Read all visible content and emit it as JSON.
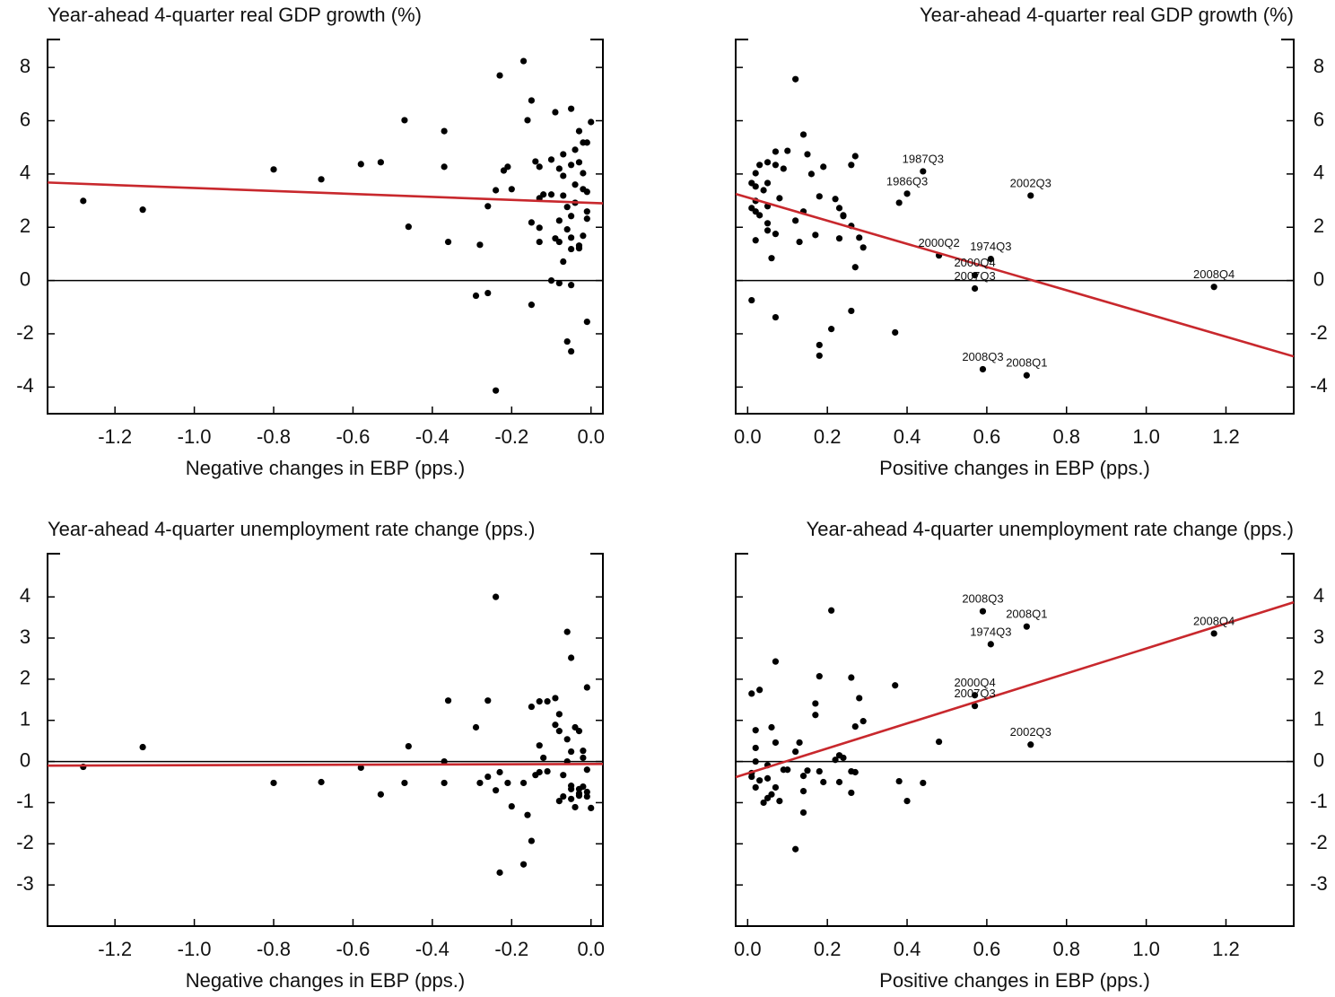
{
  "chart_data": [
    {
      "type": "scatter",
      "title": "Year-ahead 4-quarter real GDP growth (%)",
      "title_align": "left",
      "x_label": "Negative changes in EBP (pps.)",
      "y_axis_side": "left",
      "xlim": [
        -1.37,
        0.03
      ],
      "xticks": [
        -1.2,
        {
          "value": -1.0,
          "label": "-1.0"
        },
        -0.8,
        -0.6,
        -0.4,
        -0.2,
        {
          "value": 0.0,
          "label": "0.0"
        }
      ],
      "ylim": [
        -5,
        9.05
      ],
      "yticks": [
        -4,
        -2,
        0,
        2,
        4,
        6,
        8
      ],
      "hline": 0,
      "series": [
        {
          "color": "#000000",
          "x": [
            -1.28,
            -1.13,
            -0.8,
            -0.68,
            -0.58,
            -0.53,
            -0.47,
            -0.46,
            -0.37,
            -0.37,
            -0.36,
            -0.28,
            -0.29,
            -0.26,
            -0.26,
            -0.24,
            -0.23,
            -0.24,
            -0.22,
            -0.21,
            -0.2,
            -0.17,
            -0.16,
            -0.15,
            -0.15,
            -0.15,
            -0.14,
            -0.13,
            -0.13,
            -0.13,
            -0.13,
            -0.12,
            -0.1,
            -0.1,
            -0.1,
            -0.09,
            -0.09,
            -0.08,
            -0.08,
            -0.08,
            -0.08,
            -0.07,
            -0.07,
            -0.07,
            -0.07,
            -0.06,
            -0.06,
            -0.06,
            -0.05,
            -0.05,
            -0.05,
            -0.05,
            -0.05,
            -0.05,
            -0.05,
            -0.04,
            -0.04,
            -0.04,
            -0.03,
            -0.03,
            -0.03,
            -0.03,
            -0.02,
            -0.02,
            -0.02,
            -0.02,
            -0.01,
            -0.01,
            -0.01,
            -0.01,
            -0.01,
            0.0
          ],
          "values": [
            2.99,
            2.66,
            4.17,
            3.8,
            4.37,
            4.44,
            6.02,
            2.02,
            4.27,
            5.61,
            1.45,
            1.34,
            -0.57,
            -0.47,
            2.79,
            3.39,
            7.7,
            -4.13,
            4.13,
            4.27,
            3.43,
            8.24,
            6.02,
            6.76,
            -0.91,
            2.18,
            4.47,
            1.98,
            1.45,
            4.27,
            3.09,
            3.23,
            0.0,
            4.54,
            3.23,
            1.58,
            6.32,
            2.25,
            -0.1,
            4.2,
            1.45,
            0.71,
            3.93,
            3.19,
            4.74,
            2.76,
            -2.29,
            1.92,
            4.34,
            -2.66,
            1.18,
            1.61,
            6.45,
            -0.17,
            2.42,
            2.92,
            4.91,
            3.6,
            1.31,
            1.21,
            5.61,
            4.44,
            3.43,
            5.18,
            1.68,
            4.03,
            3.33,
            5.18,
            2.59,
            2.32,
            -1.55,
            5.95
          ]
        }
      ],
      "fit": {
        "color": "#c8282d",
        "x": [
          -1.37,
          0.03
        ],
        "values": [
          3.68,
          2.9
        ]
      }
    },
    {
      "type": "scatter",
      "title": "Year-ahead 4-quarter real GDP growth (%)",
      "title_align": "right",
      "x_label": "Positive changes in EBP (pps.)",
      "y_axis_side": "right",
      "xlim": [
        -0.03,
        1.37
      ],
      "xticks": [
        {
          "value": 0.0,
          "label": "0.0"
        },
        0.2,
        0.4,
        0.6,
        0.8,
        {
          "value": 1.0,
          "label": "1.0"
        },
        1.2
      ],
      "ylim": [
        -5,
        9.05
      ],
      "yticks": [
        -4,
        -2,
        0,
        2,
        4,
        6,
        8
      ],
      "hline": 0,
      "series": [
        {
          "color": "#000000",
          "x": [
            0.12,
            0.14,
            0.1,
            0.07,
            0.27,
            0.15,
            0.07,
            0.05,
            0.03,
            0.09,
            0.19,
            0.26,
            0.44,
            0.02,
            0.01,
            0.02,
            0.16,
            0.05,
            0.04,
            0.4,
            0.71,
            0.08,
            0.18,
            0.22,
            0.02,
            0.38,
            0.05,
            0.23,
            0.01,
            0.14,
            0.02,
            0.03,
            0.24,
            0.24,
            0.12,
            0.05,
            0.26,
            0.05,
            0.07,
            0.17,
            0.23,
            0.28,
            0.02,
            0.13,
            0.29,
            0.48,
            0.61,
            0.06,
            0.27,
            0.57,
            0.57,
            1.17,
            0.01,
            0.07,
            0.26,
            0.21,
            0.37,
            0.18,
            0.18,
            0.59,
            0.7
          ],
          "values": [
            7.56,
            5.48,
            4.87,
            4.84,
            4.67,
            4.74,
            4.34,
            4.44,
            4.34,
            4.2,
            4.27,
            4.34,
            4.1,
            4.03,
            3.66,
            3.53,
            4.0,
            3.66,
            3.39,
            3.26,
            3.19,
            3.09,
            3.16,
            3.06,
            2.99,
            2.92,
            2.79,
            2.72,
            2.72,
            2.59,
            2.59,
            2.45,
            2.45,
            2.42,
            2.25,
            2.15,
            2.05,
            1.88,
            1.75,
            1.71,
            1.58,
            1.61,
            1.51,
            1.45,
            1.24,
            0.94,
            0.81,
            0.84,
            0.5,
            0.2,
            -0.3,
            -0.24,
            -0.74,
            -1.38,
            -1.14,
            -1.82,
            -1.95,
            -2.42,
            -2.82,
            -3.33,
            -3.56
          ]
        }
      ],
      "fit": {
        "color": "#c8282d",
        "x": [
          -0.03,
          1.37
        ],
        "values": [
          3.25,
          -2.85
        ]
      },
      "annotations": [
        {
          "text": "1987Q3",
          "x": 0.44,
          "y": 4.1
        },
        {
          "text": "1986Q3",
          "x": 0.4,
          "y": 3.26
        },
        {
          "text": "2002Q3",
          "x": 0.71,
          "y": 3.19
        },
        {
          "text": "1974Q3",
          "x": 0.61,
          "y": 0.81
        },
        {
          "text": "2000Q2",
          "x": 0.48,
          "y": 0.94
        },
        {
          "text": "2000Q4",
          "x": 0.57,
          "y": 0.2
        },
        {
          "text": "2007Q3",
          "x": 0.57,
          "y": -0.3
        },
        {
          "text": "2008Q4",
          "x": 1.17,
          "y": -0.24
        },
        {
          "text": "2008Q3",
          "x": 0.59,
          "y": -3.33
        },
        {
          "text": "2008Q1",
          "x": 0.7,
          "y": -3.56
        }
      ]
    },
    {
      "type": "scatter",
      "title": "Year-ahead 4-quarter unemployment rate change (pps.)",
      "title_align": "left",
      "x_label": "Negative changes in EBP (pps.)",
      "y_axis_side": "left",
      "xlim": [
        -1.37,
        0.03
      ],
      "xticks": [
        -1.2,
        {
          "value": -1.0,
          "label": "-1.0"
        },
        -0.8,
        -0.6,
        -0.4,
        -0.2,
        {
          "value": 0.0,
          "label": "0.0"
        }
      ],
      "ylim": [
        -4,
        5.05
      ],
      "yticks": [
        -3,
        -2,
        -1,
        0,
        1,
        2,
        3,
        4
      ],
      "hline": 0,
      "series": [
        {
          "color": "#000000",
          "x": [
            -1.28,
            -1.13,
            -0.8,
            -0.68,
            -0.58,
            -0.53,
            -0.46,
            -0.47,
            -0.37,
            -0.36,
            -0.37,
            -0.29,
            -0.28,
            -0.26,
            -0.26,
            -0.24,
            -0.24,
            -0.23,
            -0.23,
            -0.21,
            -0.2,
            -0.17,
            -0.17,
            -0.16,
            -0.15,
            -0.15,
            -0.14,
            -0.13,
            -0.13,
            -0.13,
            -0.12,
            -0.11,
            -0.11,
            -0.09,
            -0.09,
            -0.08,
            -0.08,
            -0.08,
            -0.07,
            -0.07,
            -0.06,
            -0.06,
            -0.06,
            -0.05,
            -0.05,
            -0.05,
            -0.05,
            -0.05,
            -0.04,
            -0.04,
            -0.03,
            -0.03,
            -0.03,
            -0.03,
            -0.02,
            -0.02,
            -0.02,
            -0.01,
            -0.01,
            -0.01,
            -0.01,
            0.0
          ],
          "values": [
            -0.13,
            0.35,
            -0.52,
            -0.5,
            -0.15,
            -0.8,
            0.37,
            -0.52,
            0.0,
            1.48,
            -0.52,
            0.83,
            -0.52,
            1.48,
            -0.37,
            -0.7,
            4.0,
            -2.7,
            -0.26,
            -0.52,
            -1.09,
            -0.52,
            -2.5,
            -1.3,
            -1.93,
            1.33,
            -0.33,
            1.46,
            0.39,
            -0.26,
            0.09,
            1.46,
            -0.24,
            1.54,
            0.89,
            1.15,
            0.74,
            -0.96,
            -0.33,
            -0.85,
            0.54,
            3.15,
            0.0,
            -0.59,
            2.52,
            0.24,
            -0.91,
            -0.67,
            0.83,
            -1.11,
            -0.78,
            0.74,
            -0.67,
            -0.83,
            0.26,
            0.09,
            -0.61,
            -0.85,
            -0.74,
            -0.2,
            1.8,
            -1.13
          ]
        }
      ],
      "fit": {
        "color": "#c8282d",
        "x": [
          -1.37,
          0.03
        ],
        "values": [
          -0.1,
          -0.06
        ]
      }
    },
    {
      "type": "scatter",
      "title": "Year-ahead 4-quarter unemployment rate change (pps.)",
      "title_align": "right",
      "x_label": "Positive changes in EBP (pps.)",
      "y_axis_side": "right",
      "xlim": [
        -0.03,
        1.37
      ],
      "xticks": [
        {
          "value": 0.0,
          "label": "0.0"
        },
        0.2,
        0.4,
        0.6,
        0.8,
        {
          "value": 1.0,
          "label": "1.0"
        },
        1.2
      ],
      "ylim": [
        -4,
        5.05
      ],
      "yticks": [
        -3,
        -2,
        -1,
        0,
        1,
        2,
        3,
        4
      ],
      "hline": 0,
      "series": [
        {
          "color": "#000000",
          "x": [
            0.59,
            0.7,
            0.61,
            1.17,
            0.57,
            0.57,
            0.71,
            0.21,
            0.07,
            0.18,
            0.26,
            0.37,
            0.03,
            0.01,
            0.17,
            0.28,
            0.17,
            0.29,
            0.27,
            0.02,
            0.06,
            0.48,
            0.13,
            0.07,
            0.02,
            0.12,
            0.23,
            0.24,
            0.22,
            0.05,
            0.02,
            0.09,
            0.1,
            0.15,
            0.18,
            0.26,
            0.27,
            0.01,
            0.01,
            0.14,
            0.05,
            0.03,
            0.19,
            0.23,
            0.38,
            0.44,
            0.02,
            0.07,
            0.14,
            0.26,
            0.06,
            0.05,
            0.04,
            0.08,
            0.4,
            0.14,
            0.12
          ],
          "values": [
            3.65,
            3.28,
            2.85,
            3.11,
            1.61,
            1.35,
            0.41,
            3.67,
            2.43,
            2.07,
            2.04,
            1.85,
            1.74,
            1.65,
            1.41,
            1.54,
            1.13,
            0.98,
            0.85,
            0.76,
            0.83,
            0.48,
            0.46,
            0.46,
            0.33,
            0.24,
            0.15,
            0.09,
            0.04,
            -0.09,
            0.0,
            -0.2,
            -0.2,
            -0.22,
            -0.24,
            -0.24,
            -0.26,
            -0.28,
            -0.37,
            -0.35,
            -0.41,
            -0.46,
            -0.5,
            -0.5,
            -0.48,
            -0.52,
            -0.63,
            -0.63,
            -0.72,
            -0.76,
            -0.8,
            -0.89,
            -1.0,
            -0.96,
            -0.96,
            -1.24,
            -2.13
          ]
        }
      ],
      "fit": {
        "color": "#c8282d",
        "x": [
          -0.03,
          1.37
        ],
        "values": [
          -0.38,
          3.87
        ]
      },
      "annotations": [
        {
          "text": "2008Q3",
          "x": 0.59,
          "y": 3.65
        },
        {
          "text": "2008Q1",
          "x": 0.7,
          "y": 3.28
        },
        {
          "text": "1974Q3",
          "x": 0.61,
          "y": 2.85
        },
        {
          "text": "2008Q4",
          "x": 1.17,
          "y": 3.11
        },
        {
          "text": "2000Q4",
          "x": 0.57,
          "y": 1.61
        },
        {
          "text": "2007Q3",
          "x": 0.57,
          "y": 1.35
        },
        {
          "text": "2002Q3",
          "x": 0.71,
          "y": 0.41
        }
      ]
    }
  ]
}
